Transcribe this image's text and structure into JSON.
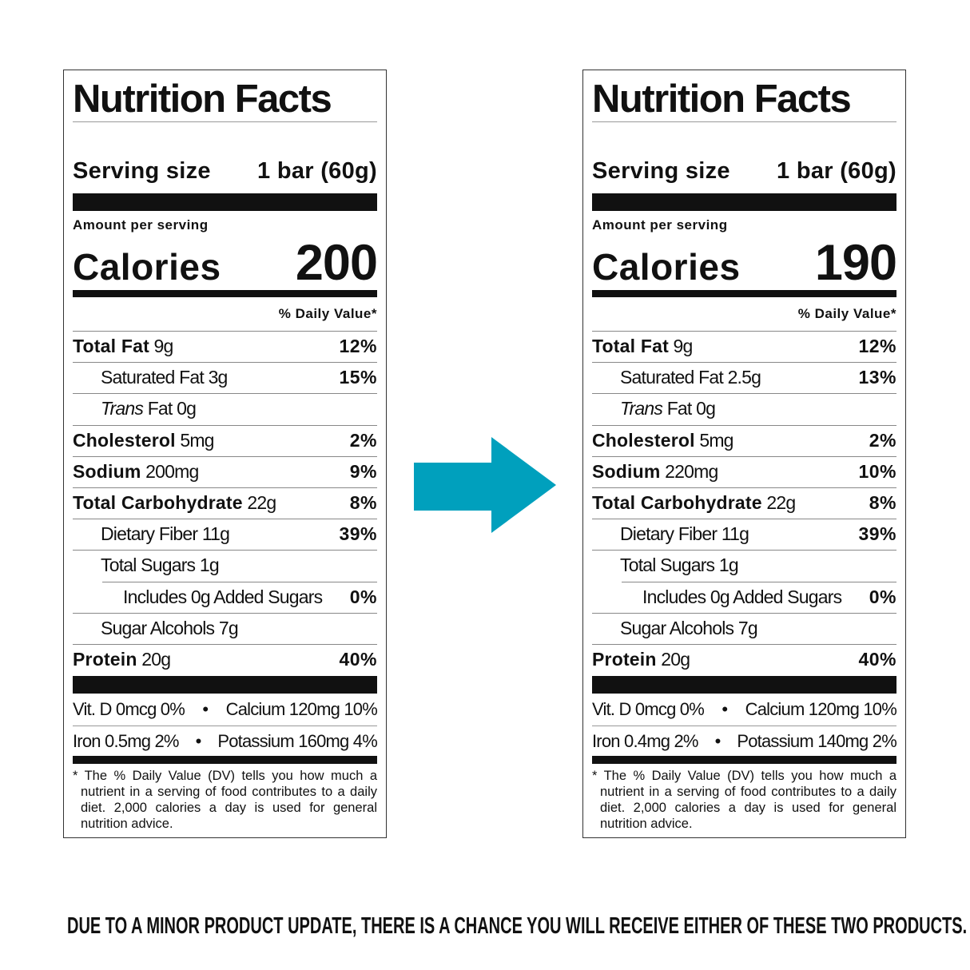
{
  "labels": [
    {
      "title": "Nutrition Facts",
      "serving_label": "Serving size",
      "serving_value": "1 bar (60g)",
      "amount_per_serving": "Amount per serving",
      "calories_label": "Calories",
      "calories_value": "200",
      "dv_header": "% Daily Value*",
      "rows": [
        {
          "name": "Total Fat",
          "amount": "9g",
          "dv": "12%",
          "bold": true,
          "indent": 0
        },
        {
          "name": "Saturated Fat",
          "amount": "3g",
          "dv": "15%",
          "bold": false,
          "indent": 1
        },
        {
          "name": "Trans",
          "name_suffix": "Fat",
          "amount": "0g",
          "dv": "",
          "bold": false,
          "italic": true,
          "indent": 1
        },
        {
          "name": "Cholesterol",
          "amount": "5mg",
          "dv": "2%",
          "bold": true,
          "indent": 0
        },
        {
          "name": "Sodium",
          "amount": "200mg",
          "dv": "9%",
          "bold": true,
          "indent": 0
        },
        {
          "name": "Total Carbohydrate",
          "amount": "22g",
          "dv": "8%",
          "bold": true,
          "indent": 0
        },
        {
          "name": "Dietary Fiber",
          "amount": "11g",
          "dv": "39%",
          "bold": false,
          "indent": 1
        },
        {
          "name": "Total Sugars",
          "amount": "1g",
          "dv": "",
          "bold": false,
          "indent": 1
        },
        {
          "name": "Includes 0g Added Sugars",
          "amount": "",
          "dv": "0%",
          "bold": false,
          "indent": 2
        },
        {
          "name": "Sugar Alcohols",
          "amount": "7g",
          "dv": "",
          "bold": false,
          "indent": 1
        },
        {
          "name": "Protein",
          "amount": "20g",
          "dv": "40%",
          "bold": true,
          "indent": 0
        }
      ],
      "minerals": [
        [
          "Vit. D 0mcg 0%",
          "Calcium 120mg 10%"
        ],
        [
          "Iron 0.5mg 2%",
          "Potassium 160mg 4%"
        ]
      ],
      "footnote": "* The % Daily Value (DV) tells you how much a nutrient in a serving of food contributes to a daily diet. 2,000 calories a day is used for general nutrition advice."
    },
    {
      "title": "Nutrition Facts",
      "serving_label": "Serving size",
      "serving_value": "1 bar (60g)",
      "amount_per_serving": "Amount per serving",
      "calories_label": "Calories",
      "calories_value": "190",
      "dv_header": "% Daily Value*",
      "rows": [
        {
          "name": "Total Fat",
          "amount": "9g",
          "dv": "12%",
          "bold": true,
          "indent": 0
        },
        {
          "name": "Saturated Fat",
          "amount": "2.5g",
          "dv": "13%",
          "bold": false,
          "indent": 1
        },
        {
          "name": "Trans",
          "name_suffix": "Fat",
          "amount": "0g",
          "dv": "",
          "bold": false,
          "italic": true,
          "indent": 1
        },
        {
          "name": "Cholesterol",
          "amount": "5mg",
          "dv": "2%",
          "bold": true,
          "indent": 0
        },
        {
          "name": "Sodium",
          "amount": "220mg",
          "dv": "10%",
          "bold": true,
          "indent": 0
        },
        {
          "name": "Total Carbohydrate",
          "amount": "22g",
          "dv": "8%",
          "bold": true,
          "indent": 0
        },
        {
          "name": "Dietary Fiber",
          "amount": "11g",
          "dv": "39%",
          "bold": false,
          "indent": 1
        },
        {
          "name": "Total Sugars",
          "amount": "1g",
          "dv": "",
          "bold": false,
          "indent": 1
        },
        {
          "name": "Includes 0g Added Sugars",
          "amount": "",
          "dv": "0%",
          "bold": false,
          "indent": 2
        },
        {
          "name": "Sugar Alcohols",
          "amount": "7g",
          "dv": "",
          "bold": false,
          "indent": 1
        },
        {
          "name": "Protein",
          "amount": "20g",
          "dv": "40%",
          "bold": true,
          "indent": 0
        }
      ],
      "minerals": [
        [
          "Vit. D 0mcg 0%",
          "Calcium 120mg 10%"
        ],
        [
          "Iron 0.4mg 2%",
          "Potassium 140mg 2%"
        ]
      ],
      "footnote": "* The % Daily Value (DV) tells you how much a nutrient in a serving of food contributes to a daily diet. 2,000 calories a day is used for general nutrition advice."
    }
  ],
  "arrow": {
    "icon": "arrow-right-icon",
    "color": "#00a0bd"
  },
  "notice": "DUE TO A MINOR PRODUCT UPDATE, THERE IS A CHANCE YOU WILL RECEIVE EITHER OF THESE TWO PRODUCTS."
}
